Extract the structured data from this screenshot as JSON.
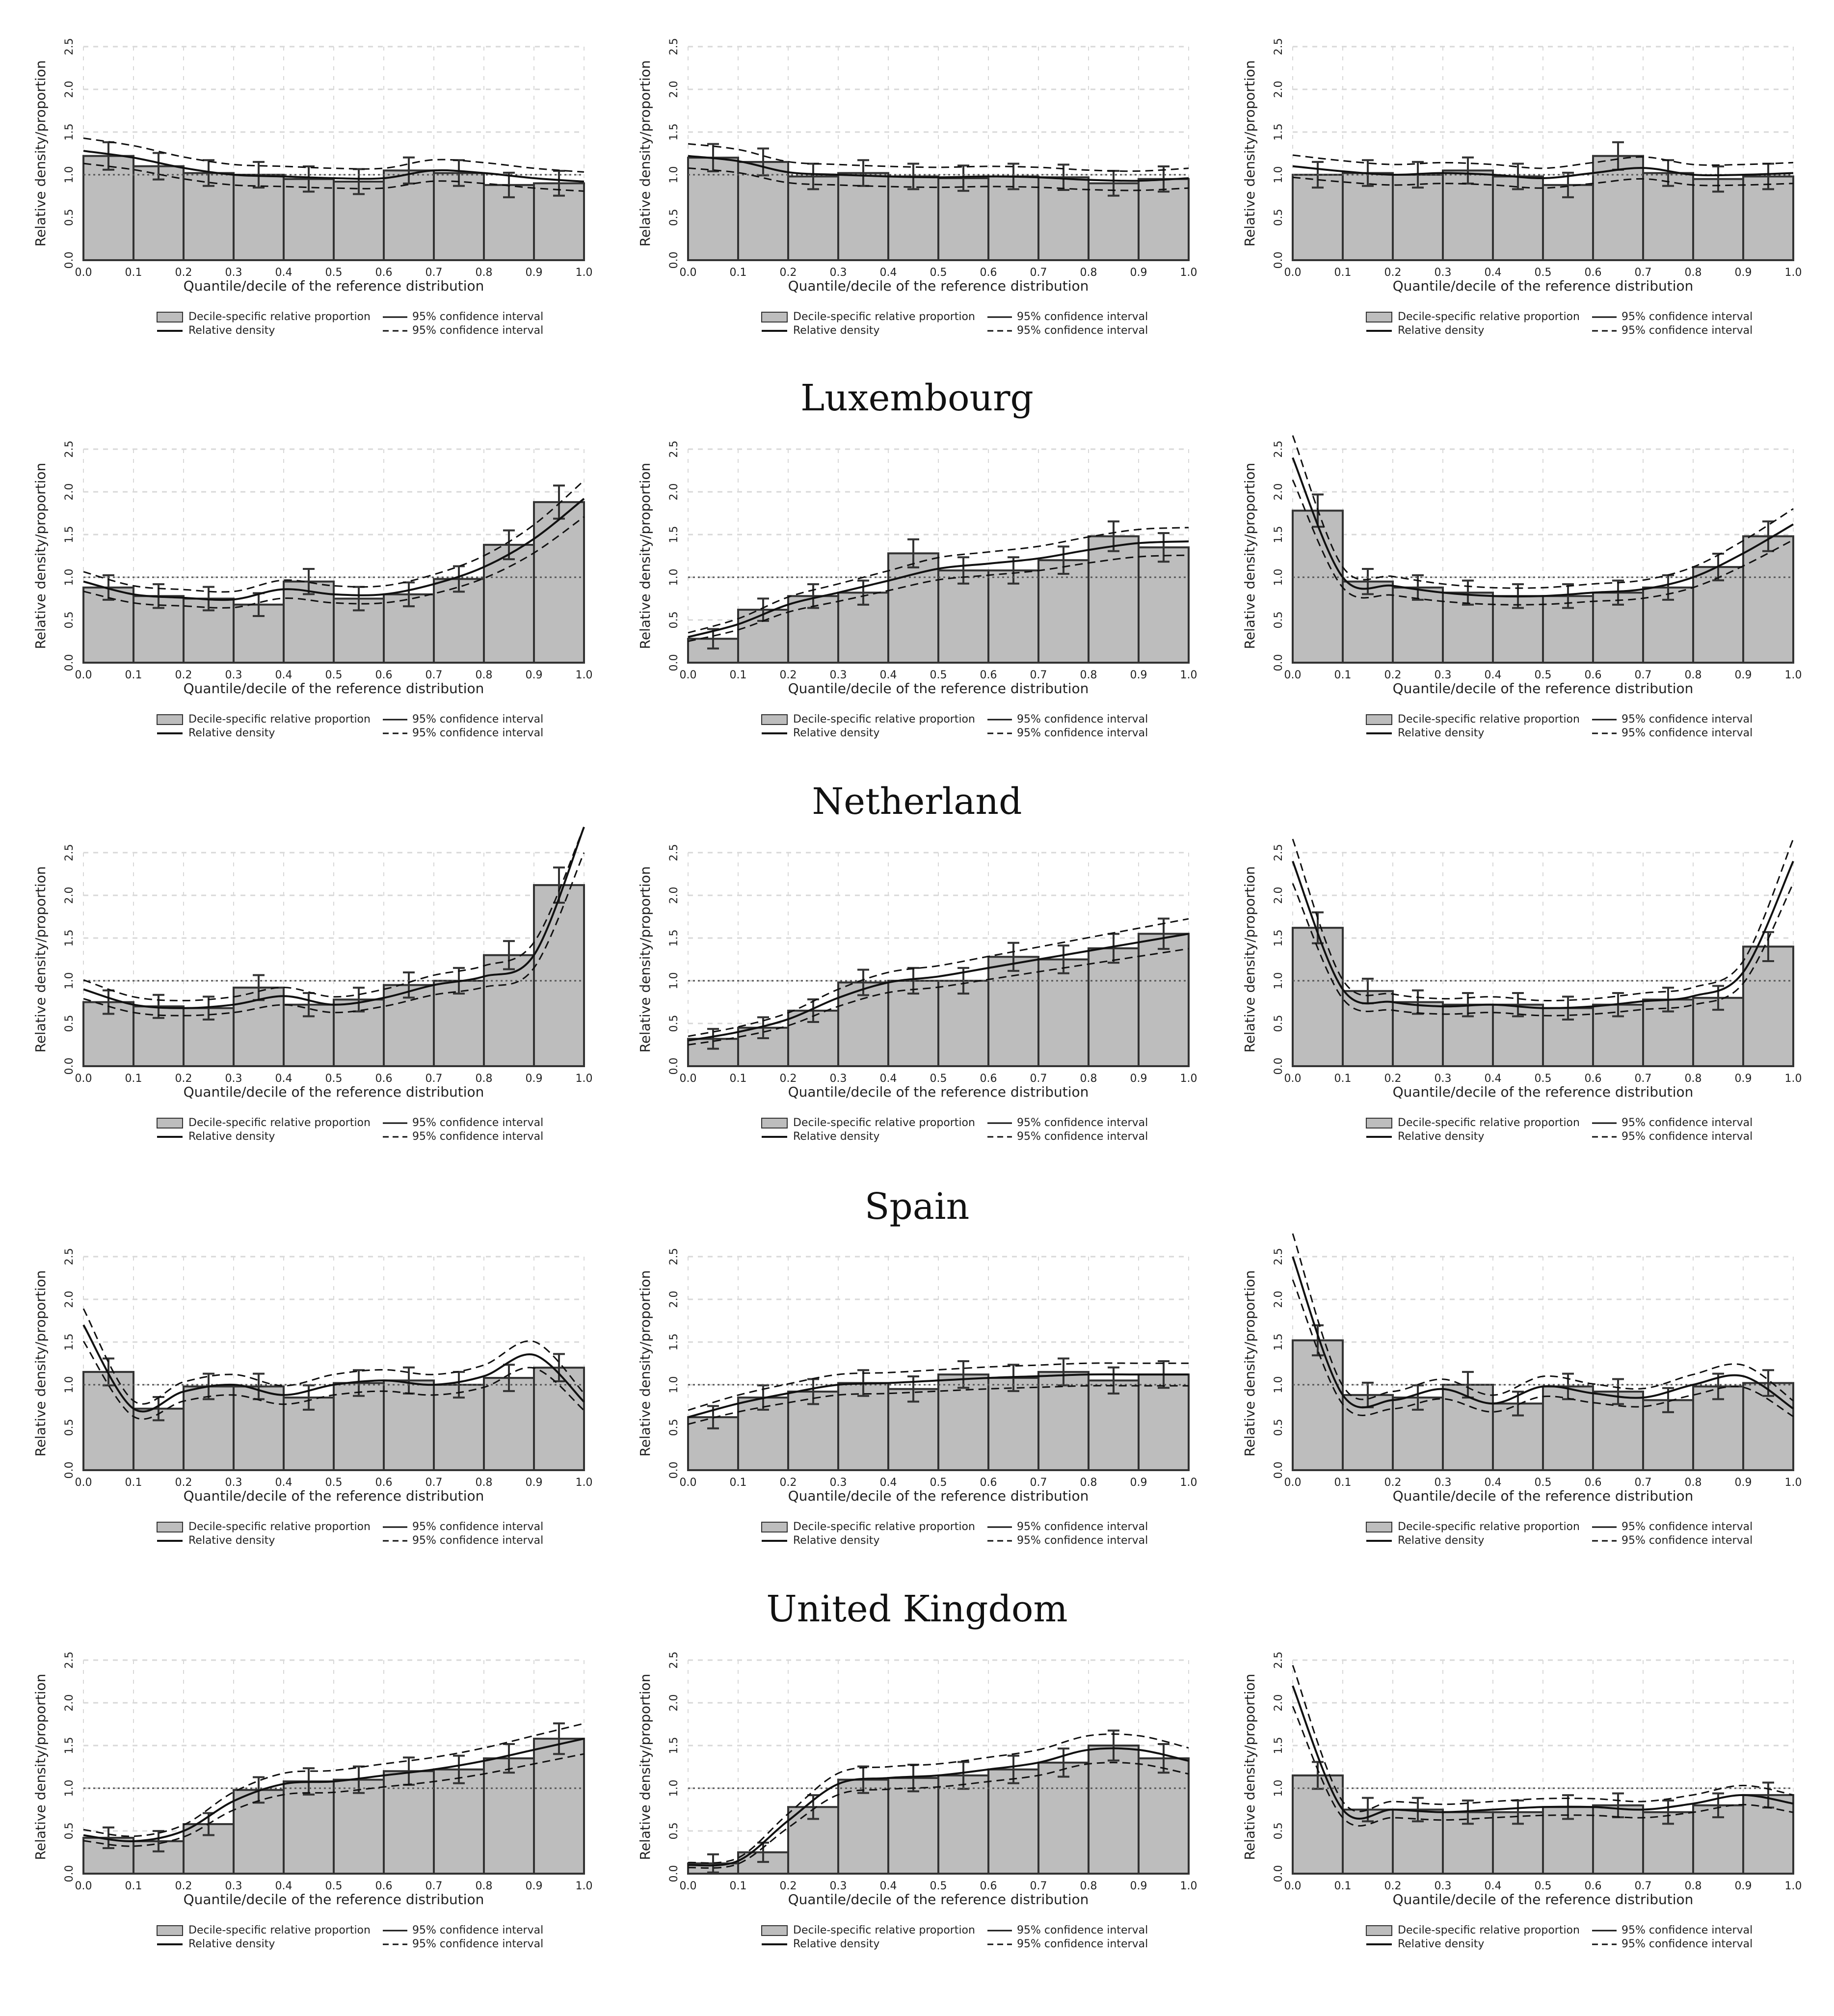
{
  "section_titles": [
    "Luxembourg",
    "Netherland",
    "Spain",
    "United Kingdom"
  ],
  "common": {
    "ylabel": "Relative density/proportion",
    "xlabel": "Quantile/decile of the reference distribution",
    "yticks": [
      "0.0",
      "0.5",
      "1.0",
      "1.5",
      "2.0",
      "2.5"
    ],
    "xticks": [
      "0.0",
      "0.1",
      "0.2",
      "0.3",
      "0.4",
      "0.5",
      "0.6",
      "0.7",
      "0.8",
      "0.9",
      "1.0"
    ],
    "legend": {
      "bar": "Decile-specific relative proportion",
      "ci_bar": "95% confidence interval",
      "density": "Relative density",
      "ci_density": "95% confidence interval"
    },
    "colors": {
      "bar_fill": "#bdbdbd",
      "bar_edge": "#333333",
      "line": "#111111",
      "ref": "#555555",
      "grid": "#d8d8d8"
    }
  },
  "chart_data": [
    {
      "type": "bar",
      "ylim": [
        0,
        2.5
      ],
      "grid": true,
      "legend_position": "bottom",
      "bars": [
        1.22,
        1.1,
        1.02,
        1.0,
        0.95,
        0.92,
        1.05,
        1.02,
        0.88,
        0.9
      ],
      "density": [
        1.28,
        1.2,
        1.08,
        1.0,
        0.98,
        0.96,
        0.96,
        1.05,
        1.02,
        0.96,
        0.92
      ]
    },
    {
      "type": "bar",
      "ylim": [
        0,
        2.5
      ],
      "grid": true,
      "legend_position": "bottom",
      "bars": [
        1.2,
        1.15,
        0.98,
        1.02,
        0.98,
        0.96,
        0.98,
        0.97,
        0.9,
        0.95
      ],
      "density": [
        1.22,
        1.16,
        1.03,
        1.0,
        0.98,
        0.97,
        0.98,
        0.97,
        0.94,
        0.93,
        0.96
      ]
    },
    {
      "type": "bar",
      "ylim": [
        0,
        2.5
      ],
      "grid": true,
      "legend_position": "bottom",
      "bars": [
        1.0,
        1.02,
        1.0,
        1.05,
        0.98,
        0.88,
        1.22,
        1.02,
        0.95,
        0.98
      ],
      "density": [
        1.1,
        1.04,
        1.0,
        1.02,
        1.0,
        0.96,
        1.02,
        1.08,
        1.0,
        1.0,
        1.02
      ]
    },
    {
      "type": "bar",
      "ylim": [
        0,
        2.5
      ],
      "grid": true,
      "legend_position": "bottom",
      "bars": [
        0.88,
        0.78,
        0.75,
        0.68,
        0.95,
        0.75,
        0.8,
        0.98,
        1.38,
        1.88
      ],
      "density": [
        0.95,
        0.8,
        0.76,
        0.74,
        0.86,
        0.8,
        0.8,
        0.92,
        1.12,
        1.45,
        1.92
      ]
    },
    {
      "type": "bar",
      "ylim": [
        0,
        2.5
      ],
      "grid": true,
      "legend_position": "bottom",
      "bars": [
        0.28,
        0.62,
        0.78,
        0.82,
        1.28,
        1.08,
        1.08,
        1.2,
        1.48,
        1.35
      ],
      "density": [
        0.3,
        0.45,
        0.68,
        0.82,
        0.96,
        1.1,
        1.16,
        1.22,
        1.32,
        1.4,
        1.42
      ]
    },
    {
      "type": "bar",
      "ylim": [
        0,
        2.5
      ],
      "grid": true,
      "legend_position": "bottom",
      "bars": [
        1.78,
        0.95,
        0.88,
        0.82,
        0.78,
        0.78,
        0.82,
        0.88,
        1.12,
        1.48
      ],
      "density": [
        2.4,
        1.0,
        0.9,
        0.82,
        0.78,
        0.78,
        0.82,
        0.86,
        1.0,
        1.28,
        1.62
      ]
    },
    {
      "type": "bar",
      "ylim": [
        0,
        2.5
      ],
      "grid": true,
      "legend_position": "bottom",
      "bars": [
        0.75,
        0.7,
        0.68,
        0.92,
        0.72,
        0.78,
        0.95,
        1.0,
        1.3,
        2.12
      ],
      "density": [
        0.9,
        0.72,
        0.68,
        0.72,
        0.82,
        0.72,
        0.8,
        0.95,
        1.05,
        1.3,
        2.8
      ]
    },
    {
      "type": "bar",
      "ylim": [
        0,
        2.5
      ],
      "grid": true,
      "legend_position": "bottom",
      "bars": [
        0.32,
        0.45,
        0.65,
        0.98,
        1.0,
        1.0,
        1.28,
        1.25,
        1.38,
        1.55
      ],
      "density": [
        0.3,
        0.4,
        0.55,
        0.8,
        0.98,
        1.05,
        1.15,
        1.25,
        1.35,
        1.45,
        1.55
      ]
    },
    {
      "type": "bar",
      "ylim": [
        0,
        2.5
      ],
      "grid": true,
      "legend_position": "bottom",
      "bars": [
        1.62,
        0.88,
        0.75,
        0.72,
        0.72,
        0.68,
        0.72,
        0.78,
        0.8,
        1.4
      ],
      "density": [
        2.4,
        0.9,
        0.75,
        0.7,
        0.72,
        0.68,
        0.7,
        0.76,
        0.82,
        1.1,
        2.4
      ]
    },
    {
      "type": "bar",
      "ylim": [
        0,
        2.5
      ],
      "grid": true,
      "legend_position": "bottom",
      "bars": [
        1.15,
        0.72,
        0.98,
        0.98,
        0.85,
        1.02,
        1.05,
        1.0,
        1.08,
        1.2
      ],
      "density": [
        1.7,
        0.72,
        0.92,
        1.0,
        0.88,
        1.0,
        1.05,
        1.0,
        1.1,
        1.35,
        0.8
      ]
    },
    {
      "type": "bar",
      "ylim": [
        0,
        2.5
      ],
      "grid": true,
      "legend_position": "bottom",
      "bars": [
        0.62,
        0.85,
        0.92,
        1.02,
        0.95,
        1.12,
        1.08,
        1.15,
        1.05,
        1.12
      ],
      "density": [
        0.62,
        0.78,
        0.9,
        1.0,
        1.02,
        1.05,
        1.08,
        1.1,
        1.12,
        1.12,
        1.12
      ]
    },
    {
      "type": "bar",
      "ylim": [
        0,
        2.5
      ],
      "grid": true,
      "legend_position": "bottom",
      "bars": [
        1.52,
        0.88,
        0.85,
        1.0,
        0.78,
        0.98,
        0.92,
        0.82,
        0.98,
        1.02
      ],
      "density": [
        2.5,
        0.88,
        0.82,
        0.95,
        0.78,
        0.98,
        0.9,
        0.85,
        1.0,
        1.1,
        0.72
      ]
    },
    {
      "type": "bar",
      "ylim": [
        0,
        2.5
      ],
      "grid": true,
      "legend_position": "bottom",
      "bars": [
        0.42,
        0.38,
        0.58,
        0.98,
        1.08,
        1.1,
        1.2,
        1.22,
        1.35,
        1.58
      ],
      "density": [
        0.45,
        0.38,
        0.5,
        0.85,
        1.05,
        1.08,
        1.15,
        1.22,
        1.32,
        1.45,
        1.58
      ]
    },
    {
      "type": "bar",
      "ylim": [
        0,
        2.5
      ],
      "grid": true,
      "legend_position": "bottom",
      "bars": [
        0.12,
        0.25,
        0.78,
        1.1,
        1.12,
        1.15,
        1.22,
        1.3,
        1.5,
        1.35
      ],
      "density": [
        0.1,
        0.15,
        0.62,
        1.05,
        1.12,
        1.15,
        1.22,
        1.3,
        1.45,
        1.45,
        1.32
      ]
    },
    {
      "type": "bar",
      "ylim": [
        0,
        2.5
      ],
      "grid": true,
      "legend_position": "bottom",
      "bars": [
        1.15,
        0.75,
        0.75,
        0.72,
        0.72,
        0.78,
        0.8,
        0.72,
        0.8,
        0.92
      ],
      "density": [
        2.2,
        0.75,
        0.75,
        0.72,
        0.75,
        0.78,
        0.78,
        0.75,
        0.82,
        0.92,
        0.82
      ]
    }
  ]
}
